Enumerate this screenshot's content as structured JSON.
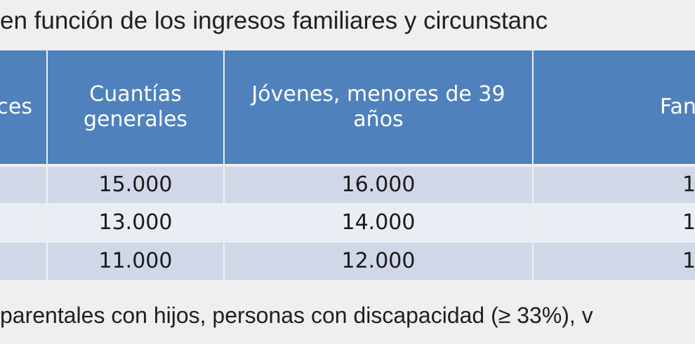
{
  "heading": "en función de los ingresos familiares y circunstanc",
  "footer": "parentales con hijos, personas con discapacidad (≥ 33%), v",
  "table": {
    "headers": {
      "col0": "ces",
      "col1_line1": "Cuantías",
      "col1_line2": "generales",
      "col2_line1": "Jóvenes, menores de 39",
      "col2_line2": "años",
      "col3": "Fan"
    },
    "rows": [
      {
        "col1": "15.000",
        "col2": "16.000",
        "col3": "1"
      },
      {
        "col1": "13.000",
        "col2": "14.000",
        "col3": "1"
      },
      {
        "col1": "11.000",
        "col2": "12.000",
        "col3": "1"
      }
    ]
  },
  "colors": {
    "header_bg": "#4f81bd",
    "row_bg": "#d0d8e8",
    "page_bg": "#efefef"
  }
}
